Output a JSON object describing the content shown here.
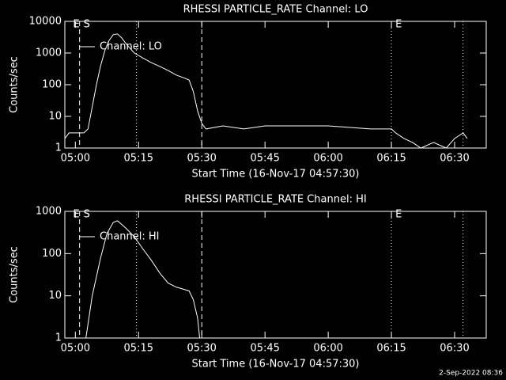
{
  "chart_data": [
    {
      "type": "line",
      "title": "RHESSI PARTICLE_RATE Channel: LO",
      "x_label": "Start Time (16-Nov-17 04:57:30)",
      "y_label": "Counts/sec",
      "xlim": [
        "04:57:30",
        "06:37:30"
      ],
      "xticks": [
        "05:00",
        "05:15",
        "05:30",
        "05:45",
        "06:00",
        "06:15",
        "06:30"
      ],
      "ylim": [
        1,
        10000
      ],
      "yticks": [
        1,
        10,
        100,
        1000,
        10000
      ],
      "log_y": true,
      "legend": "upper left",
      "markers": [
        {
          "x": "04:58:30",
          "style": "none",
          "label": "E"
        },
        {
          "x": "05:01:00",
          "style": "dashed",
          "label": "S"
        },
        {
          "x": "05:14:30",
          "style": "dotted"
        },
        {
          "x": "05:30:00",
          "style": "dashed"
        },
        {
          "x": "06:15:00",
          "style": "dotted",
          "label": "E"
        },
        {
          "x": "06:32:00",
          "style": "dotted"
        }
      ],
      "series": [
        {
          "name": "Channel: LO",
          "color": "#ffffff",
          "x": [
            "04:57:30",
            "04:58:30",
            "05:00:00",
            "05:02:00",
            "05:03:00",
            "05:04:00",
            "05:05:00",
            "05:06:00",
            "05:07:00",
            "05:08:00",
            "05:09:00",
            "05:10:00",
            "05:11:00",
            "05:12:00",
            "05:13:00",
            "05:14:00",
            "05:16:00",
            "05:18:00",
            "05:20:00",
            "05:22:00",
            "05:24:00",
            "05:26:00",
            "05:27:00",
            "05:28:00",
            "05:29:00",
            "05:30:00",
            "05:31:00",
            "05:35:00",
            "05:40:00",
            "05:45:00",
            "05:50:00",
            "05:55:00",
            "06:00:00",
            "06:05:00",
            "06:10:00",
            "06:15:00",
            "06:16:00",
            "06:18:00",
            "06:20:00",
            "06:22:00",
            "06:25:00",
            "06:28:00",
            "06:30:00",
            "06:32:00",
            "06:33:00"
          ],
          "values": [
            2,
            3,
            3,
            3,
            4,
            20,
            100,
            400,
            1200,
            2500,
            3800,
            4000,
            3000,
            2000,
            1400,
            1000,
            700,
            500,
            380,
            280,
            200,
            160,
            140,
            60,
            15,
            6,
            4,
            5,
            4,
            5,
            5,
            5,
            5,
            4.5,
            4,
            4,
            3,
            2,
            1.5,
            1,
            1.5,
            1,
            2,
            3,
            2
          ]
        }
      ]
    },
    {
      "type": "line",
      "title": "RHESSI PARTICLE_RATE Channel: HI",
      "x_label": "Start Time (16-Nov-17 04:57:30)",
      "y_label": "Counts/sec",
      "xlim": [
        "04:57:30",
        "06:37:30"
      ],
      "xticks": [
        "05:00",
        "05:15",
        "05:30",
        "05:45",
        "06:00",
        "06:15",
        "06:30"
      ],
      "ylim": [
        1,
        1000
      ],
      "yticks": [
        1,
        10,
        100,
        1000
      ],
      "log_y": true,
      "legend": "upper left",
      "markers": [
        {
          "x": "04:58:30",
          "style": "none",
          "label": "E"
        },
        {
          "x": "05:01:00",
          "style": "dashed",
          "label": "S"
        },
        {
          "x": "05:14:30",
          "style": "dotted"
        },
        {
          "x": "05:30:00",
          "style": "dashed"
        },
        {
          "x": "06:15:00",
          "style": "dotted",
          "label": "E"
        },
        {
          "x": "06:32:00",
          "style": "dotted"
        }
      ],
      "series": [
        {
          "name": "Channel: HI",
          "color": "#ffffff",
          "x": [
            "05:02:30",
            "05:04:00",
            "05:06:00",
            "05:07:30",
            "05:09:00",
            "05:10:00",
            "05:12:00",
            "05:14:00",
            "05:16:00",
            "05:18:00",
            "05:20:00",
            "05:22:00",
            "05:24:00",
            "05:26:00",
            "05:27:00",
            "05:28:00",
            "05:29:00",
            "05:29:30"
          ],
          "values": [
            1,
            10,
            80,
            300,
            550,
            600,
            400,
            250,
            130,
            70,
            35,
            20,
            16,
            14,
            13,
            8,
            3,
            1
          ]
        }
      ]
    }
  ],
  "footer": "2-Sep-2022 08:36"
}
